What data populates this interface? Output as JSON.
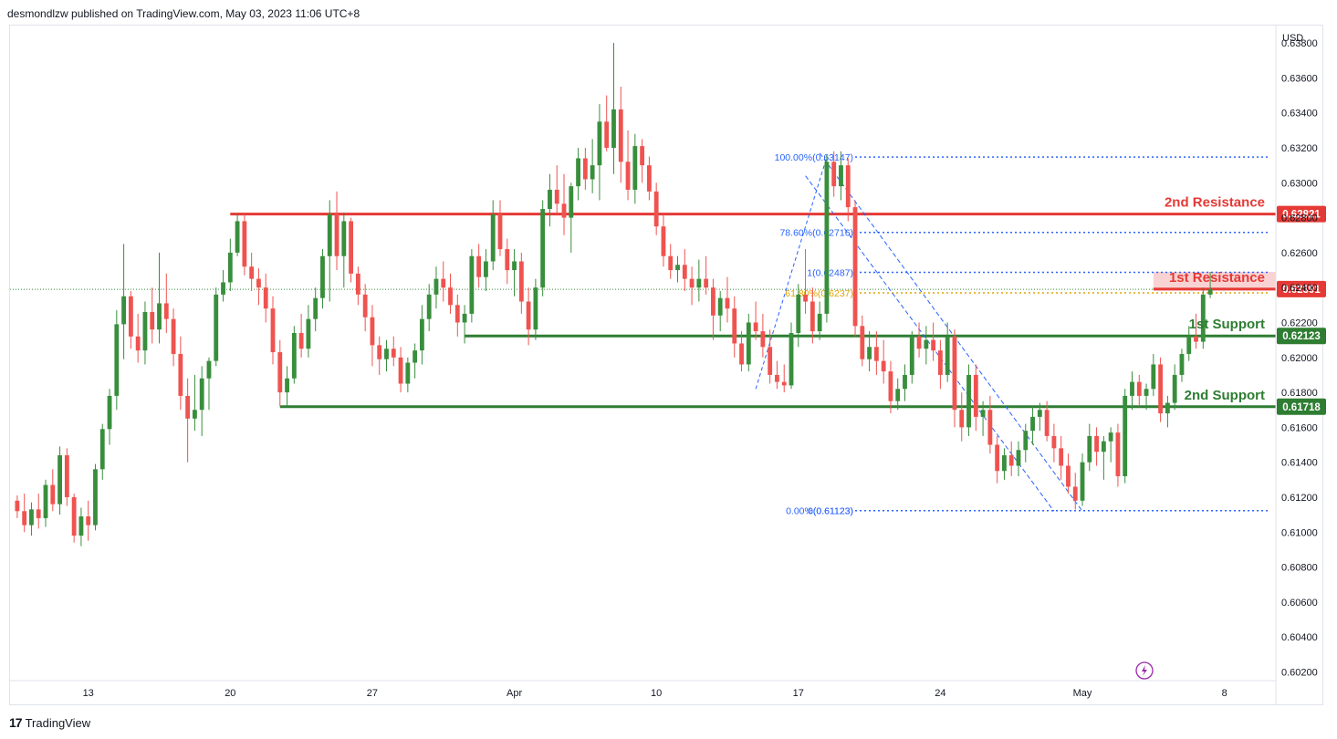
{
  "header": {
    "text": "desmondlzw published on TradingView.com, May 03, 2023 11:06 UTC+8"
  },
  "footer": {
    "brand": "TradingView",
    "logo_glyph": "17"
  },
  "colors": {
    "up": "#388e3c",
    "down": "#ef5350",
    "support": "#2e7d32",
    "resistance": "#e53935",
    "fib": "#2962ff",
    "fib_gold": "#e0a300",
    "zone": "#f8c8c8",
    "price_line": "#388e3c"
  },
  "chart_data": {
    "type": "candlestick",
    "currency_label": "USD",
    "ylim": [
      0.6015,
      0.639
    ],
    "y_ticks": [
      "0.63800",
      "0.63600",
      "0.63400",
      "0.63200",
      "0.63000",
      "0.62800",
      "0.62600",
      "0.62400",
      "0.62200",
      "0.62000",
      "0.61800",
      "0.61600",
      "0.61400",
      "0.61200",
      "0.61000",
      "0.60800",
      "0.60600",
      "0.60400",
      "0.60200"
    ],
    "x_ticks": [
      {
        "label": "13",
        "bar": 10
      },
      {
        "label": "20",
        "bar": 30
      },
      {
        "label": "27",
        "bar": 50
      },
      {
        "label": "Apr",
        "bar": 70
      },
      {
        "label": "10",
        "bar": 90
      },
      {
        "label": "17",
        "bar": 110
      },
      {
        "label": "24",
        "bar": 130
      },
      {
        "label": "May",
        "bar": 150
      },
      {
        "label": "8",
        "bar": 170
      }
    ],
    "bars_visible": 178,
    "levels": [
      {
        "name": "2nd Resistance",
        "value": 0.62821,
        "tag": "0.62821",
        "kind": "resistance",
        "from_bar": 30
      },
      {
        "name": "1st Resistance",
        "value": 0.62391,
        "tag": "0.62391",
        "kind": "resistance",
        "from_bar": 160
      },
      {
        "name": "1st Support",
        "value": 0.62123,
        "tag": "0.62123",
        "kind": "support",
        "from_bar": 63
      },
      {
        "name": "2nd Support",
        "value": 0.61718,
        "tag": "0.61718",
        "kind": "support",
        "from_bar": 37
      }
    ],
    "fib_levels": [
      {
        "label": "100.00%(0.63147)",
        "value": 0.63147,
        "gold": false
      },
      {
        "label": "78.60%(0.62716)",
        "value": 0.62716,
        "gold": false
      },
      {
        "label": "1(0.62487)",
        "value": 0.62487,
        "gold": false
      },
      {
        "label": "61.80%(0.6237)",
        "value": 0.6237,
        "gold": true
      },
      {
        "label": "0.00%(0.61123)",
        "value": 0.61123,
        "gold": false
      },
      {
        "label": "0(0.61123)",
        "value": 0.61123,
        "gold": false
      }
    ],
    "resistance_zone": {
      "low": 0.6239,
      "high": 0.6249
    },
    "last_price": 0.6239,
    "ohlc": [
      [
        0.6118,
        0.6121,
        0.6108,
        0.6112
      ],
      [
        0.6112,
        0.6122,
        0.61,
        0.6104
      ],
      [
        0.6104,
        0.6117,
        0.6098,
        0.6113
      ],
      [
        0.6113,
        0.6122,
        0.6102,
        0.6108
      ],
      [
        0.6108,
        0.613,
        0.6103,
        0.6127
      ],
      [
        0.6127,
        0.6136,
        0.6112,
        0.6116
      ],
      [
        0.6116,
        0.6149,
        0.611,
        0.6144
      ],
      [
        0.6144,
        0.6148,
        0.6115,
        0.612
      ],
      [
        0.612,
        0.6122,
        0.6094,
        0.6098
      ],
      [
        0.6098,
        0.6114,
        0.6092,
        0.6109
      ],
      [
        0.6109,
        0.6118,
        0.6095,
        0.6104
      ],
      [
        0.6104,
        0.6139,
        0.6101,
        0.6136
      ],
      [
        0.6136,
        0.6162,
        0.613,
        0.6159
      ],
      [
        0.6159,
        0.6182,
        0.615,
        0.6178
      ],
      [
        0.6178,
        0.6227,
        0.617,
        0.6219
      ],
      [
        0.6219,
        0.6265,
        0.6199,
        0.6235
      ],
      [
        0.6235,
        0.6238,
        0.6205,
        0.6212
      ],
      [
        0.6212,
        0.6225,
        0.6197,
        0.6204
      ],
      [
        0.6204,
        0.6232,
        0.6196,
        0.6226
      ],
      [
        0.6226,
        0.624,
        0.6208,
        0.6216
      ],
      [
        0.6216,
        0.626,
        0.6208,
        0.6231
      ],
      [
        0.6231,
        0.6248,
        0.6214,
        0.6222
      ],
      [
        0.6222,
        0.6228,
        0.6195,
        0.6202
      ],
      [
        0.6202,
        0.6212,
        0.617,
        0.6178
      ],
      [
        0.6178,
        0.6188,
        0.614,
        0.6165
      ],
      [
        0.6165,
        0.619,
        0.6158,
        0.617
      ],
      [
        0.617,
        0.6195,
        0.6155,
        0.6188
      ],
      [
        0.6188,
        0.62,
        0.617,
        0.6198
      ],
      [
        0.6198,
        0.624,
        0.6195,
        0.6236
      ],
      [
        0.6236,
        0.625,
        0.6232,
        0.6243
      ],
      [
        0.6243,
        0.6268,
        0.6238,
        0.626
      ],
      [
        0.626,
        0.6282,
        0.6258,
        0.6278
      ],
      [
        0.6278,
        0.6283,
        0.6247,
        0.6252
      ],
      [
        0.6252,
        0.626,
        0.6238,
        0.6245
      ],
      [
        0.6245,
        0.6251,
        0.623,
        0.624
      ],
      [
        0.624,
        0.6248,
        0.622,
        0.6228
      ],
      [
        0.6228,
        0.6235,
        0.6196,
        0.6203
      ],
      [
        0.6203,
        0.621,
        0.6172,
        0.618
      ],
      [
        0.618,
        0.6195,
        0.6172,
        0.6188
      ],
      [
        0.6188,
        0.6218,
        0.6185,
        0.6214
      ],
      [
        0.6214,
        0.6225,
        0.62,
        0.6205
      ],
      [
        0.6205,
        0.623,
        0.62,
        0.6222
      ],
      [
        0.6222,
        0.624,
        0.6215,
        0.6234
      ],
      [
        0.6234,
        0.6262,
        0.6228,
        0.6258
      ],
      [
        0.6258,
        0.629,
        0.6232,
        0.6282
      ],
      [
        0.6282,
        0.6295,
        0.625,
        0.6258
      ],
      [
        0.6258,
        0.6283,
        0.624,
        0.6278
      ],
      [
        0.6278,
        0.628,
        0.6243,
        0.6248
      ],
      [
        0.6248,
        0.6252,
        0.623,
        0.6236
      ],
      [
        0.6236,
        0.6242,
        0.6215,
        0.6223
      ],
      [
        0.6223,
        0.623,
        0.6195,
        0.6207
      ],
      [
        0.6207,
        0.6212,
        0.619,
        0.6199
      ],
      [
        0.6199,
        0.621,
        0.6192,
        0.6205
      ],
      [
        0.6205,
        0.6212,
        0.6195,
        0.62
      ],
      [
        0.62,
        0.6206,
        0.618,
        0.6185
      ],
      [
        0.6185,
        0.62,
        0.618,
        0.6197
      ],
      [
        0.6197,
        0.6208,
        0.6188,
        0.6204
      ],
      [
        0.6204,
        0.623,
        0.6196,
        0.6222
      ],
      [
        0.6222,
        0.6242,
        0.6215,
        0.6236
      ],
      [
        0.6236,
        0.6252,
        0.6228,
        0.6245
      ],
      [
        0.6245,
        0.6255,
        0.6232,
        0.624
      ],
      [
        0.624,
        0.6248,
        0.6225,
        0.623
      ],
      [
        0.623,
        0.6236,
        0.6212,
        0.622
      ],
      [
        0.622,
        0.623,
        0.6208,
        0.6225
      ],
      [
        0.6225,
        0.6262,
        0.622,
        0.6258
      ],
      [
        0.6258,
        0.6265,
        0.624,
        0.6246
      ],
      [
        0.6246,
        0.6262,
        0.6238,
        0.6255
      ],
      [
        0.6255,
        0.629,
        0.625,
        0.6282
      ],
      [
        0.6282,
        0.629,
        0.6258,
        0.6262
      ],
      [
        0.6262,
        0.6268,
        0.6242,
        0.625
      ],
      [
        0.625,
        0.6262,
        0.6235,
        0.6255
      ],
      [
        0.6255,
        0.626,
        0.6225,
        0.6232
      ],
      [
        0.6232,
        0.624,
        0.6207,
        0.6216
      ],
      [
        0.6216,
        0.6245,
        0.621,
        0.624
      ],
      [
        0.624,
        0.629,
        0.6235,
        0.6285
      ],
      [
        0.6285,
        0.6305,
        0.6275,
        0.6296
      ],
      [
        0.6296,
        0.631,
        0.6282,
        0.6288
      ],
      [
        0.6288,
        0.6305,
        0.627,
        0.628
      ],
      [
        0.628,
        0.63,
        0.626,
        0.6298
      ],
      [
        0.6298,
        0.632,
        0.629,
        0.6314
      ],
      [
        0.6314,
        0.632,
        0.6296,
        0.6302
      ],
      [
        0.6302,
        0.6325,
        0.6294,
        0.631
      ],
      [
        0.631,
        0.6345,
        0.629,
        0.6335
      ],
      [
        0.6335,
        0.635,
        0.6318,
        0.632
      ],
      [
        0.632,
        0.638,
        0.6305,
        0.6342
      ],
      [
        0.6342,
        0.6355,
        0.63,
        0.6312
      ],
      [
        0.6312,
        0.633,
        0.629,
        0.6296
      ],
      [
        0.6296,
        0.6328,
        0.6288,
        0.6321
      ],
      [
        0.6321,
        0.6325,
        0.63,
        0.631
      ],
      [
        0.631,
        0.6315,
        0.629,
        0.6295
      ],
      [
        0.6295,
        0.63,
        0.627,
        0.6275
      ],
      [
        0.6275,
        0.6282,
        0.6252,
        0.6258
      ],
      [
        0.6258,
        0.6265,
        0.6245,
        0.625
      ],
      [
        0.625,
        0.6258,
        0.6243,
        0.6253
      ],
      [
        0.6253,
        0.6262,
        0.6238,
        0.6245
      ],
      [
        0.6245,
        0.6252,
        0.623,
        0.624
      ],
      [
        0.624,
        0.6256,
        0.6232,
        0.6245
      ],
      [
        0.6245,
        0.6258,
        0.6236,
        0.624
      ],
      [
        0.624,
        0.6245,
        0.621,
        0.6224
      ],
      [
        0.6224,
        0.6238,
        0.6215,
        0.6234
      ],
      [
        0.6234,
        0.6246,
        0.622,
        0.6228
      ],
      [
        0.6228,
        0.6235,
        0.62,
        0.6208
      ],
      [
        0.6208,
        0.6215,
        0.6192,
        0.6196
      ],
      [
        0.6196,
        0.6225,
        0.6192,
        0.622
      ],
      [
        0.622,
        0.6232,
        0.621,
        0.6215
      ],
      [
        0.6215,
        0.6225,
        0.62,
        0.6206
      ],
      [
        0.6206,
        0.6216,
        0.6185,
        0.619
      ],
      [
        0.619,
        0.6198,
        0.6182,
        0.6186
      ],
      [
        0.6186,
        0.6196,
        0.618,
        0.6184
      ],
      [
        0.6184,
        0.622,
        0.6182,
        0.6214
      ],
      [
        0.6214,
        0.6242,
        0.6206,
        0.6236
      ],
      [
        0.6236,
        0.6262,
        0.6225,
        0.6232
      ],
      [
        0.6232,
        0.624,
        0.6208,
        0.6215
      ],
      [
        0.6215,
        0.6232,
        0.621,
        0.6225
      ],
      [
        0.6225,
        0.6316,
        0.622,
        0.6312
      ],
      [
        0.6312,
        0.6318,
        0.6292,
        0.6298
      ],
      [
        0.6298,
        0.6318,
        0.629,
        0.631
      ],
      [
        0.631,
        0.6314,
        0.6278,
        0.6286
      ],
      [
        0.6286,
        0.629,
        0.6212,
        0.6218
      ],
      [
        0.6218,
        0.6224,
        0.6195,
        0.6199
      ],
      [
        0.6199,
        0.6215,
        0.6192,
        0.6206
      ],
      [
        0.6206,
        0.6215,
        0.619,
        0.6198
      ],
      [
        0.6198,
        0.621,
        0.6185,
        0.6192
      ],
      [
        0.6192,
        0.6198,
        0.6168,
        0.6175
      ],
      [
        0.6175,
        0.6188,
        0.617,
        0.6182
      ],
      [
        0.6182,
        0.6196,
        0.6175,
        0.619
      ],
      [
        0.619,
        0.6215,
        0.6185,
        0.6212
      ],
      [
        0.6212,
        0.622,
        0.62,
        0.6205
      ],
      [
        0.6205,
        0.6218,
        0.6196,
        0.621
      ],
      [
        0.621,
        0.622,
        0.6198,
        0.6204
      ],
      [
        0.6204,
        0.621,
        0.6182,
        0.619
      ],
      [
        0.619,
        0.622,
        0.6186,
        0.6212
      ],
      [
        0.6212,
        0.6216,
        0.616,
        0.617
      ],
      [
        0.617,
        0.618,
        0.6152,
        0.616
      ],
      [
        0.616,
        0.6196,
        0.6155,
        0.619
      ],
      [
        0.619,
        0.6196,
        0.6158,
        0.6166
      ],
      [
        0.6166,
        0.6175,
        0.6155,
        0.617
      ],
      [
        0.617,
        0.6178,
        0.6145,
        0.615
      ],
      [
        0.615,
        0.6155,
        0.6128,
        0.6135
      ],
      [
        0.6135,
        0.6148,
        0.613,
        0.6144
      ],
      [
        0.6144,
        0.6152,
        0.6132,
        0.6138
      ],
      [
        0.6138,
        0.6152,
        0.6132,
        0.6147
      ],
      [
        0.6147,
        0.6162,
        0.614,
        0.6158
      ],
      [
        0.6158,
        0.6172,
        0.615,
        0.6166
      ],
      [
        0.6166,
        0.6174,
        0.6158,
        0.617
      ],
      [
        0.617,
        0.6175,
        0.6152,
        0.6155
      ],
      [
        0.6155,
        0.6162,
        0.614,
        0.6148
      ],
      [
        0.6148,
        0.6155,
        0.613,
        0.6138
      ],
      [
        0.6138,
        0.6145,
        0.6122,
        0.6126
      ],
      [
        0.6126,
        0.6134,
        0.6113,
        0.6118
      ],
      [
        0.6118,
        0.6145,
        0.6115,
        0.614
      ],
      [
        0.614,
        0.6162,
        0.6135,
        0.6155
      ],
      [
        0.6155,
        0.616,
        0.6138,
        0.6146
      ],
      [
        0.6146,
        0.6155,
        0.613,
        0.6152
      ],
      [
        0.6152,
        0.616,
        0.614,
        0.6157
      ],
      [
        0.6157,
        0.6162,
        0.6126,
        0.6132
      ],
      [
        0.6132,
        0.6182,
        0.6128,
        0.6178
      ],
      [
        0.6178,
        0.6192,
        0.617,
        0.6186
      ],
      [
        0.6186,
        0.619,
        0.6172,
        0.6178
      ],
      [
        0.6178,
        0.6185,
        0.617,
        0.6182
      ],
      [
        0.6182,
        0.6202,
        0.6178,
        0.6196
      ],
      [
        0.6196,
        0.62,
        0.6163,
        0.6168
      ],
      [
        0.6168,
        0.6178,
        0.616,
        0.6174
      ],
      [
        0.6174,
        0.6196,
        0.617,
        0.619
      ],
      [
        0.619,
        0.6205,
        0.6186,
        0.6202
      ],
      [
        0.6202,
        0.6218,
        0.6198,
        0.6212
      ],
      [
        0.6212,
        0.6225,
        0.6205,
        0.6209
      ],
      [
        0.6209,
        0.624,
        0.6205,
        0.6236
      ],
      [
        0.6236,
        0.6249,
        0.6234,
        0.6239
      ]
    ]
  }
}
